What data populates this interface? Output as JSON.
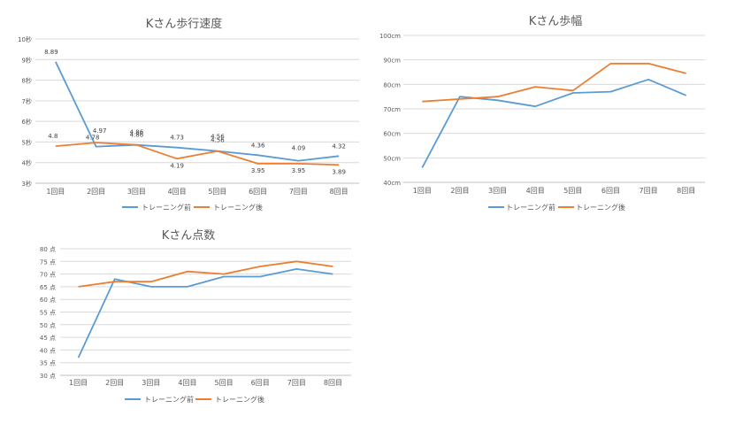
{
  "chart_data": [
    {
      "type": "line",
      "title": "Kさん歩行速度",
      "categories": [
        "1回目",
        "2回目",
        "3回目",
        "4回目",
        "5回目",
        "6回目",
        "7回目",
        "8回目"
      ],
      "y_ticks": [
        "3秒",
        "4秒",
        "5秒",
        "6秒",
        "7秒",
        "8秒",
        "9秒",
        "10秒"
      ],
      "ylim": [
        3,
        10
      ],
      "grid": true,
      "legend_position": "bottom",
      "data_labels": true,
      "series": [
        {
          "name": "トレーニング前",
          "color": "#5b9bd5",
          "values": [
            8.89,
            4.78,
            4.86,
            4.73,
            4.56,
            4.36,
            4.09,
            4.32
          ],
          "labels": [
            "8.89",
            "4.78",
            "4.86",
            "4.73",
            "4.56",
            "4.36",
            "4.09",
            "4.32"
          ]
        },
        {
          "name": "トレーニング後",
          "color": "#ed7d31",
          "values": [
            4.8,
            4.97,
            4.86,
            4.19,
            4.56,
            3.95,
            3.95,
            3.89
          ],
          "labels": [
            "4.8",
            "4.97",
            "4.86",
            "4.19",
            "4.56",
            "3.95",
            "3.95",
            "3.89"
          ]
        }
      ]
    },
    {
      "type": "line",
      "title": "Kさん歩幅",
      "categories": [
        "1回目",
        "2回目",
        "3回目",
        "4回目",
        "5回目",
        "6回目",
        "7回目",
        "8回目"
      ],
      "y_ticks": [
        "40cm",
        "50cm",
        "60cm",
        "70cm",
        "80cm",
        "90cm",
        "100cm"
      ],
      "ylim": [
        40,
        100
      ],
      "grid": true,
      "legend_position": "bottom",
      "data_labels": false,
      "series": [
        {
          "name": "トレーニング前",
          "color": "#5b9bd5",
          "values": [
            46,
            75,
            73.5,
            71,
            76.5,
            77,
            82,
            75.5
          ]
        },
        {
          "name": "トレーニング後",
          "color": "#ed7d31",
          "values": [
            73,
            74,
            75,
            79,
            77.5,
            88.5,
            88.5,
            84.5
          ]
        }
      ]
    },
    {
      "type": "line",
      "title": "Kさん点数",
      "categories": [
        "1回目",
        "2回目",
        "3回目",
        "4回目",
        "5回目",
        "6回目",
        "7回目",
        "8回目"
      ],
      "y_ticks": [
        "30 点",
        "35 点",
        "40 点",
        "45 点",
        "50 点",
        "55 点",
        "60 点",
        "65 点",
        "70 点",
        "75 点",
        "80 点"
      ],
      "ylim": [
        30,
        80
      ],
      "grid": true,
      "legend_position": "bottom",
      "data_labels": false,
      "series": [
        {
          "name": "トレーニング前",
          "color": "#5b9bd5",
          "values": [
            37,
            68,
            65,
            65,
            69,
            69,
            72,
            70
          ]
        },
        {
          "name": "トレーニング後",
          "color": "#ed7d31",
          "values": [
            65,
            67,
            67,
            71,
            70,
            73,
            75,
            73
          ]
        }
      ]
    }
  ]
}
